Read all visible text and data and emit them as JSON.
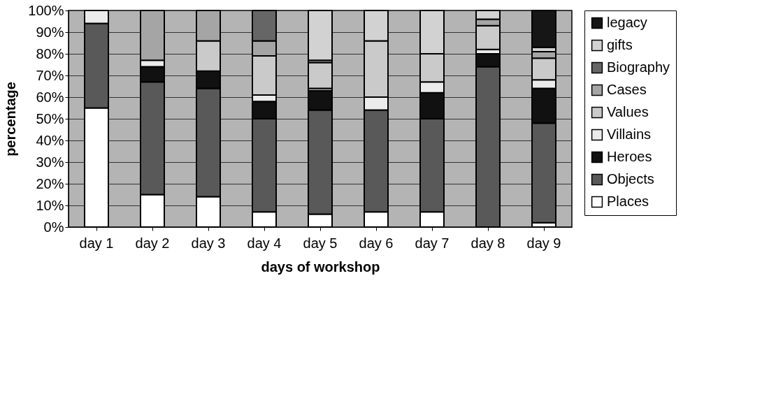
{
  "chart_data": {
    "type": "bar",
    "stacked": true,
    "xlabel": "days of workshop",
    "ylabel": "percentage",
    "categories": [
      "day 1",
      "day 2",
      "day 3",
      "day 4",
      "day 5",
      "day 6",
      "day 7",
      "day 8",
      "day 9"
    ],
    "ylim": [
      0,
      100
    ],
    "yticks": [
      {
        "value": 0,
        "label": "0%"
      },
      {
        "value": 10,
        "label": "10%"
      },
      {
        "value": 20,
        "label": "20%"
      },
      {
        "value": 30,
        "label": "30%"
      },
      {
        "value": 40,
        "label": "40%"
      },
      {
        "value": 50,
        "label": "50%"
      },
      {
        "value": 60,
        "label": "60%"
      },
      {
        "value": 70,
        "label": "70%"
      },
      {
        "value": 80,
        "label": "80%"
      },
      {
        "value": 90,
        "label": "90%"
      },
      {
        "value": 100,
        "label": "100%"
      }
    ],
    "grid": "y",
    "legend": "right",
    "series": [
      {
        "name": "Places",
        "color": "#ffffff",
        "values": [
          55,
          15,
          14,
          7,
          6,
          7,
          7,
          0,
          2
        ]
      },
      {
        "name": "Objects",
        "color": "#595959",
        "values": [
          39,
          52,
          50,
          43,
          48,
          47,
          43,
          74,
          46
        ]
      },
      {
        "name": "Heroes",
        "color": "#111111",
        "values": [
          0,
          7,
          8,
          8,
          9,
          0,
          12,
          6,
          16
        ]
      },
      {
        "name": "Villains",
        "color": "#ebebeb",
        "values": [
          6,
          3,
          0,
          3,
          1,
          6,
          5,
          2,
          4
        ]
      },
      {
        "name": "Values",
        "color": "#cacaca",
        "values": [
          0,
          0,
          14,
          18,
          12,
          26,
          13,
          11,
          10
        ]
      },
      {
        "name": "Cases",
        "color": "#a5a5a5",
        "values": [
          0,
          23,
          14,
          7,
          1,
          0,
          0,
          3,
          3
        ]
      },
      {
        "name": "Biography",
        "color": "#666666",
        "values": [
          0,
          0,
          0,
          14,
          0,
          0,
          0,
          0,
          0
        ]
      },
      {
        "name": "gifts",
        "color": "#d2d2d2",
        "values": [
          0,
          0,
          0,
          0,
          23,
          14,
          20,
          4,
          2
        ]
      },
      {
        "name": "legacy",
        "color": "#161616",
        "values": [
          0,
          0,
          0,
          0,
          0,
          0,
          0,
          0,
          17
        ]
      }
    ]
  }
}
